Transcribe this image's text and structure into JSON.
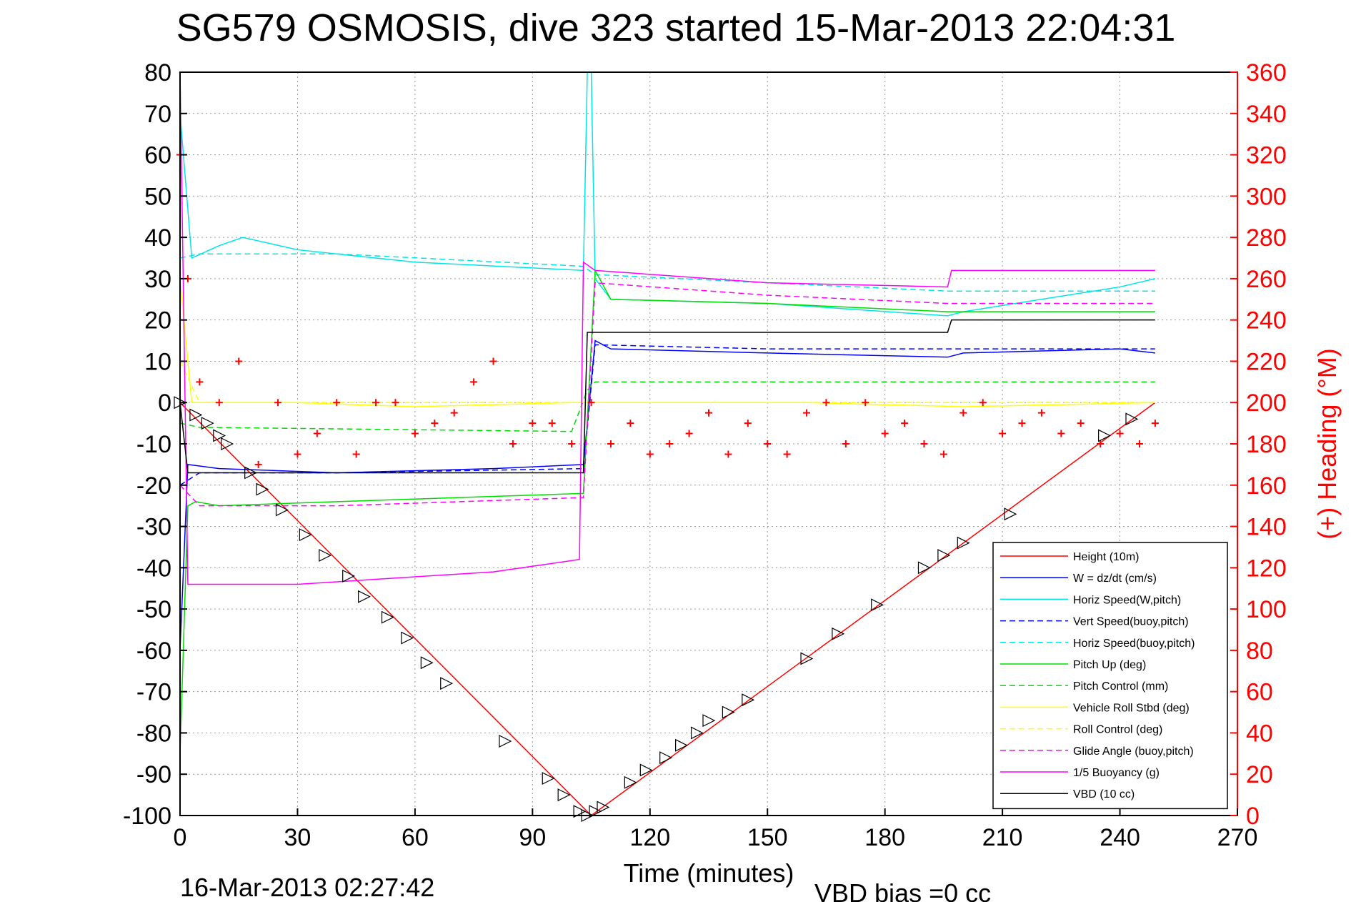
{
  "chart_data": {
    "type": "line",
    "title": "SG579 OSMOSIS, dive 323 started 15-Mar-2013 22:04:31",
    "xlabel": "Time (minutes)",
    "ylabel_right": "(+) Heading (°M)",
    "footer_left": "16-Mar-2013 02:27:42",
    "footer_right": "VBD bias =0 cc",
    "xlim": [
      0,
      270
    ],
    "ylim": [
      -100,
      80
    ],
    "ylim_right": [
      0,
      360
    ],
    "x_ticks": [
      "0",
      "30",
      "60",
      "90",
      "120",
      "150",
      "180",
      "210",
      "240",
      "270"
    ],
    "y_ticks": [
      "-100",
      "-90",
      "-80",
      "-70",
      "-60",
      "-50",
      "-40",
      "-30",
      "-20",
      "-10",
      "0",
      "10",
      "20",
      "30",
      "40",
      "50",
      "60",
      "70",
      "80"
    ],
    "y_right_ticks": [
      "0",
      "20",
      "40",
      "60",
      "80",
      "100",
      "120",
      "140",
      "160",
      "180",
      "200",
      "220",
      "240",
      "260",
      "280",
      "300",
      "320",
      "340",
      "360"
    ],
    "grid": true,
    "legend_position": "bottom-right",
    "series": [
      {
        "name": "Height (10m)",
        "color": "#ff0000",
        "style": "solid",
        "x": [
          0,
          105,
          249
        ],
        "y": [
          0,
          -100,
          0
        ]
      },
      {
        "name": "W = dz/dt (cm/s)",
        "color": "#0000ff",
        "style": "solid",
        "x": [
          0,
          2,
          10,
          40,
          80,
          103,
          106,
          110,
          150,
          196,
          200,
          240,
          249
        ],
        "y": [
          -60,
          -15,
          -16,
          -17,
          -16,
          -15,
          15,
          13,
          12,
          11,
          12,
          13,
          12
        ]
      },
      {
        "name": "Horiz Speed(W,pitch)",
        "color": "#00e5e5",
        "style": "solid",
        "x": [
          0,
          3,
          10,
          16,
          30,
          60,
          103,
          104,
          105,
          106,
          110,
          150,
          196,
          200,
          240,
          249
        ],
        "y": [
          70,
          35,
          38,
          40,
          37,
          34,
          32,
          80,
          80,
          30,
          25,
          24,
          21,
          22,
          28,
          30
        ]
      },
      {
        "name": "Vert Speed(buoy,pitch)",
        "color": "#0000ff",
        "style": "dashed",
        "x": [
          0,
          5,
          40,
          103,
          106,
          150,
          196,
          249
        ],
        "y": [
          -20,
          -17,
          -17,
          -16,
          14,
          13,
          13,
          13
        ]
      },
      {
        "name": "Horiz Speed(buoy,pitch)",
        "color": "#00e5e5",
        "style": "dashed",
        "x": [
          0,
          5,
          40,
          103,
          106,
          150,
          196,
          249
        ],
        "y": [
          35,
          36,
          36,
          33,
          31,
          29,
          27,
          27
        ]
      },
      {
        "name": "Pitch Up (deg)",
        "color": "#00dd00",
        "style": "solid",
        "x": [
          0,
          2,
          4,
          10,
          40,
          103,
          106,
          110,
          150,
          196,
          249
        ],
        "y": [
          -85,
          -25,
          -24,
          -25,
          -24,
          -22,
          32,
          25,
          24,
          22,
          22
        ]
      },
      {
        "name": "Pitch Control (mm)",
        "color": "#00dd00",
        "style": "dashed",
        "x": [
          0,
          5,
          100,
          104,
          106,
          150,
          249
        ],
        "y": [
          -5,
          -6,
          -7,
          3,
          5,
          5,
          5
        ]
      },
      {
        "name": "Vehicle Roll Stbd (deg)",
        "color": "#ffff00",
        "style": "solid",
        "x": [
          0,
          3,
          30,
          60,
          100,
          105,
          130,
          160,
          200,
          249
        ],
        "y": [
          30,
          0,
          0,
          -1,
          0,
          0,
          0,
          0,
          -1,
          0
        ]
      },
      {
        "name": "Roll Control (deg)",
        "color": "#ffff00",
        "style": "dashed",
        "x": [
          0,
          5,
          100,
          106,
          200,
          249
        ],
        "y": [
          10,
          0,
          0,
          0,
          0,
          0
        ]
      },
      {
        "name": "Glide Angle (buoy,pitch)",
        "color": "#ff00ff",
        "style": "dashed",
        "x": [
          0,
          5,
          40,
          103,
          106,
          150,
          196,
          249
        ],
        "y": [
          -20,
          -25,
          -25,
          -23,
          29,
          26,
          24,
          24
        ]
      },
      {
        "name": "1/5 Buoyancy (g)",
        "color": "#ff00ff",
        "style": "solid",
        "x": [
          0,
          2,
          30,
          80,
          102,
          103,
          106,
          150,
          196,
          197,
          249
        ],
        "y": [
          80,
          -44,
          -44,
          -41,
          -38,
          34,
          32,
          29,
          28,
          32,
          32
        ]
      },
      {
        "name": "VBD (10 cc)",
        "color": "#000000",
        "style": "solid",
        "x": [
          0,
          2,
          103,
          104,
          106,
          196,
          197,
          249
        ],
        "y": [
          0,
          -17,
          -17,
          17,
          17,
          17,
          20,
          20
        ]
      },
      {
        "name": "Heading",
        "color": "#ff0000",
        "style": "marker-plus",
        "axis": "right",
        "x": [
          0,
          2,
          5,
          10,
          15,
          20,
          25,
          30,
          35,
          40,
          45,
          50,
          55,
          60,
          65,
          70,
          75,
          80,
          85,
          90,
          95,
          100,
          105,
          110,
          115,
          120,
          125,
          130,
          135,
          140,
          145,
          150,
          155,
          160,
          165,
          170,
          175,
          180,
          185,
          190,
          195,
          200,
          205,
          210,
          215,
          220,
          225,
          230,
          235,
          240,
          245,
          249
        ],
        "y": [
          320,
          260,
          210,
          200,
          220,
          170,
          200,
          175,
          185,
          200,
          175,
          200,
          200,
          185,
          190,
          195,
          210,
          220,
          180,
          190,
          190,
          180,
          200,
          180,
          190,
          175,
          180,
          185,
          195,
          175,
          190,
          180,
          175,
          195,
          200,
          180,
          200,
          185,
          190,
          180,
          175,
          195,
          200,
          185,
          190,
          195,
          185,
          190,
          180,
          185,
          180,
          190
        ]
      }
    ],
    "waypoints": {
      "name": "markers",
      "color": "#000000",
      "style": "marker-triangle",
      "x": [
        0,
        4,
        7,
        10,
        12,
        18,
        21,
        26,
        32,
        37,
        43,
        47,
        53,
        58,
        63,
        68,
        83,
        94,
        98,
        102,
        104,
        106,
        108,
        115,
        119,
        124,
        128,
        132,
        135,
        140,
        145,
        160,
        168,
        178,
        190,
        195,
        200,
        212,
        236,
        243
      ],
      "y": [
        0,
        -3,
        -5,
        -8,
        -10,
        -17,
        -21,
        -26,
        -32,
        -37,
        -42,
        -47,
        -52,
        -57,
        -63,
        -68,
        -82,
        -91,
        -95,
        -99,
        -100,
        -99,
        -98,
        -92,
        -89,
        -86,
        -83,
        -80,
        -77,
        -75,
        -72,
        -62,
        -56,
        -49,
        -40,
        -37,
        -34,
        -27,
        -8,
        -4
      ]
    }
  }
}
